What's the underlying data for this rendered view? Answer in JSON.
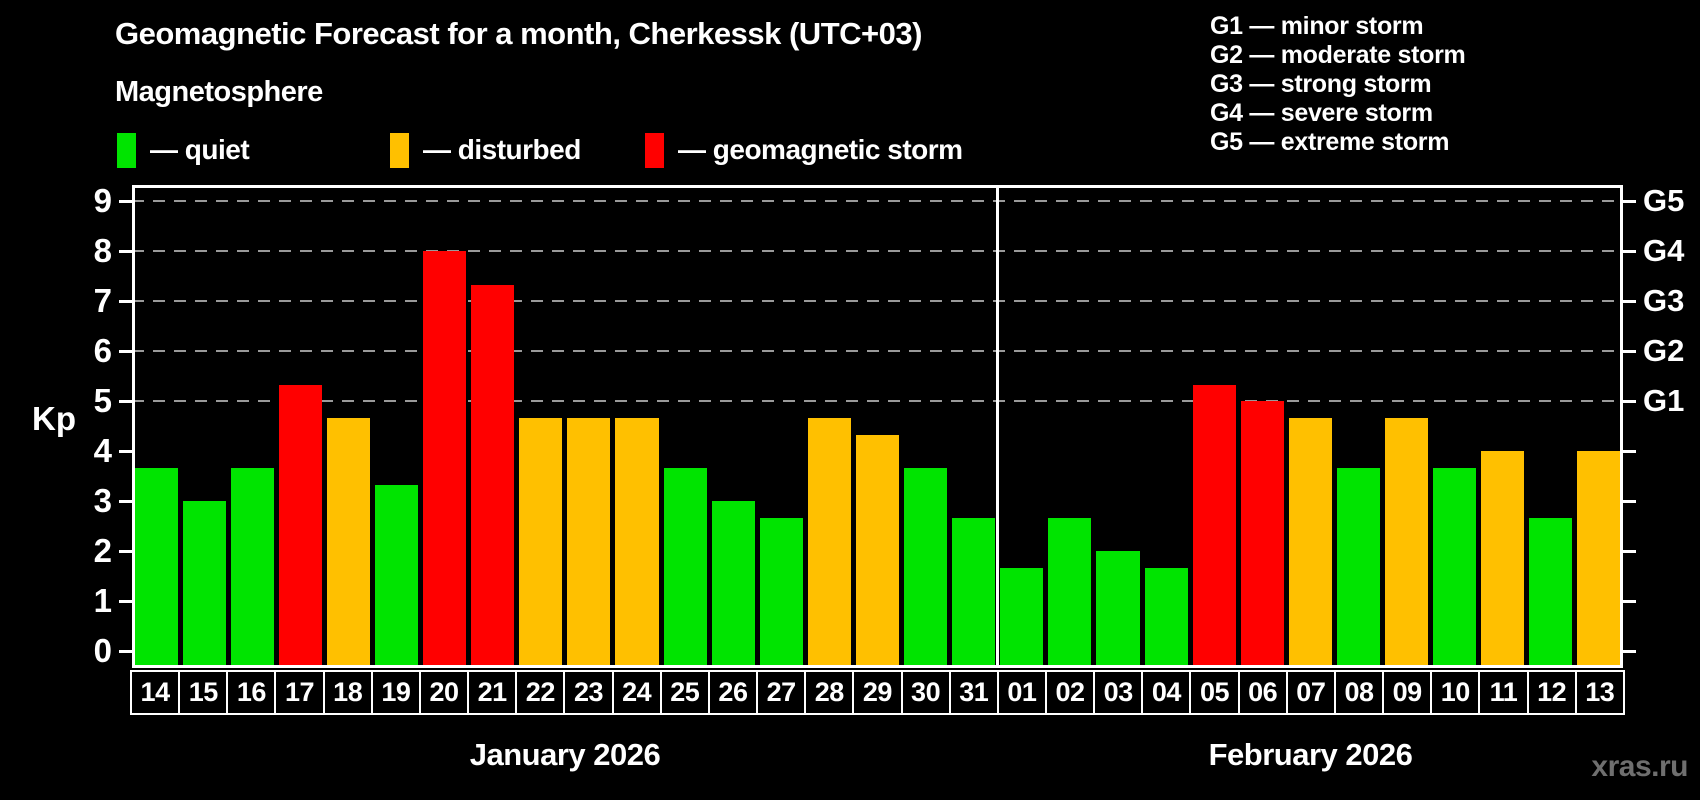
{
  "title": "Geomagnetic Forecast for a month, Cherkessk (UTC+03)",
  "subtitle": "Magnetosphere",
  "legend": {
    "items": [
      {
        "status": "quiet",
        "label": "— quiet"
      },
      {
        "status": "disturbed",
        "label": "— disturbed"
      },
      {
        "status": "storm",
        "label": "— geomagnetic storm"
      }
    ]
  },
  "g_legend": [
    "G1 — minor storm",
    "G2 — moderate storm",
    "G3 — strong storm",
    "G4 — severe storm",
    "G5 — extreme storm"
  ],
  "axis": {
    "y_label": "Kp",
    "y_ticks": [
      0,
      1,
      2,
      3,
      4,
      5,
      6,
      7,
      8,
      9
    ],
    "g_labels": [
      "G1",
      "G2",
      "G3",
      "G4",
      "G5"
    ],
    "g_levels": [
      5,
      6,
      7,
      8,
      9
    ]
  },
  "colors": {
    "quiet": "#00e400",
    "disturbed": "#ffc000",
    "storm": "#ff0000",
    "background": "#000000",
    "frame": "#ffffff",
    "gridline": "#9a9a9a",
    "watermark": "#6f6f6f"
  },
  "watermark": "xras.ru",
  "chart_data": {
    "type": "bar",
    "title": "Geomagnetic Forecast for a month, Cherkessk (UTC+03)",
    "xlabel": "",
    "ylabel": "Kp",
    "ylim": [
      0,
      9
    ],
    "grid": "dashed horizontal at Kp 5-9 (G1-G5)",
    "legend_position": "top-left",
    "gridlines_at_kp": [
      5,
      6,
      7,
      8,
      9
    ],
    "months": [
      {
        "label": "January 2026",
        "days": [
          "14",
          "15",
          "16",
          "17",
          "18",
          "19",
          "20",
          "21",
          "22",
          "23",
          "24",
          "25",
          "26",
          "27",
          "28",
          "29",
          "30",
          "31"
        ],
        "values": [
          3.67,
          3.0,
          3.67,
          5.33,
          4.67,
          3.33,
          8.0,
          7.33,
          4.67,
          4.67,
          4.67,
          3.67,
          3.0,
          2.67,
          4.67,
          4.33,
          3.67,
          2.67
        ],
        "status": [
          "quiet",
          "quiet",
          "quiet",
          "storm",
          "disturbed",
          "quiet",
          "storm",
          "storm",
          "disturbed",
          "disturbed",
          "disturbed",
          "quiet",
          "quiet",
          "quiet",
          "disturbed",
          "disturbed",
          "quiet",
          "quiet"
        ]
      },
      {
        "label": "February 2026",
        "days": [
          "01",
          "02",
          "03",
          "04",
          "05",
          "06",
          "07",
          "08",
          "09",
          "10",
          "11",
          "12",
          "13"
        ],
        "values": [
          1.67,
          2.67,
          2.0,
          1.67,
          5.33,
          5.0,
          4.67,
          3.67,
          4.67,
          3.67,
          4.0,
          2.67,
          4.0
        ],
        "status": [
          "quiet",
          "quiet",
          "quiet",
          "quiet",
          "storm",
          "storm",
          "disturbed",
          "quiet",
          "disturbed",
          "quiet",
          "disturbed",
          "quiet",
          "disturbed"
        ]
      }
    ]
  }
}
